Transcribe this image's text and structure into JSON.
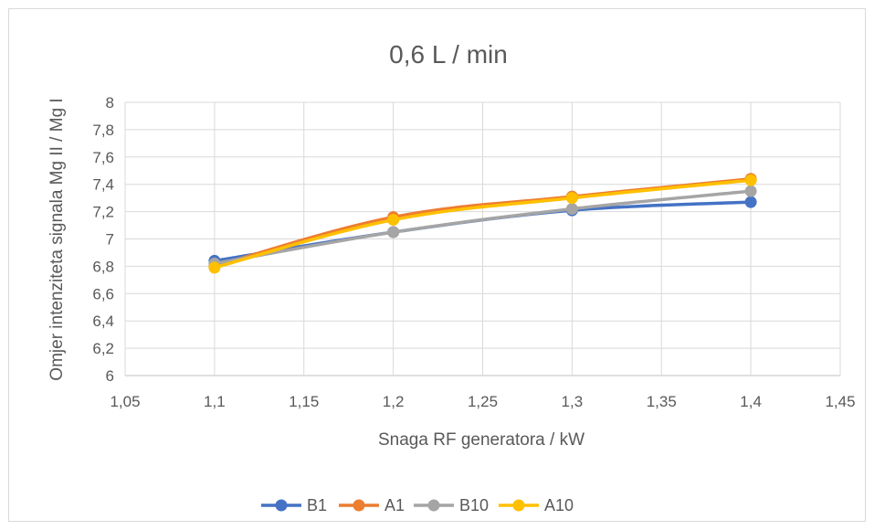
{
  "chart_data": {
    "type": "line",
    "title": "0,6 L / min",
    "xlabel": "Snaga RF generatora / kW",
    "ylabel": "Omjer intenziteta signala Mg II / Mg I",
    "xlim": [
      1.05,
      1.45
    ],
    "ylim": [
      6,
      8
    ],
    "x_ticks": [
      "1,05",
      "1,1",
      "1,15",
      "1,2",
      "1,25",
      "1,3",
      "1,35",
      "1,4",
      "1,45"
    ],
    "y_ticks": [
      "6",
      "6,2",
      "6,4",
      "6,6",
      "6,8",
      "7",
      "7,2",
      "7,4",
      "7,6",
      "7,8",
      "8"
    ],
    "grid": true,
    "legend_position": "bottom",
    "x": [
      1.1,
      1.2,
      1.3,
      1.4
    ],
    "series": [
      {
        "name": "B1",
        "color": "#4472c4",
        "values": [
          6.84,
          7.05,
          7.21,
          7.27
        ]
      },
      {
        "name": "A1",
        "color": "#ed7d31",
        "values": [
          6.8,
          7.16,
          7.31,
          7.44
        ]
      },
      {
        "name": "B10",
        "color": "#a5a5a5",
        "values": [
          6.82,
          7.05,
          7.22,
          7.35
        ]
      },
      {
        "name": "A10",
        "color": "#ffc000",
        "values": [
          6.79,
          7.14,
          7.3,
          7.43
        ]
      }
    ]
  }
}
